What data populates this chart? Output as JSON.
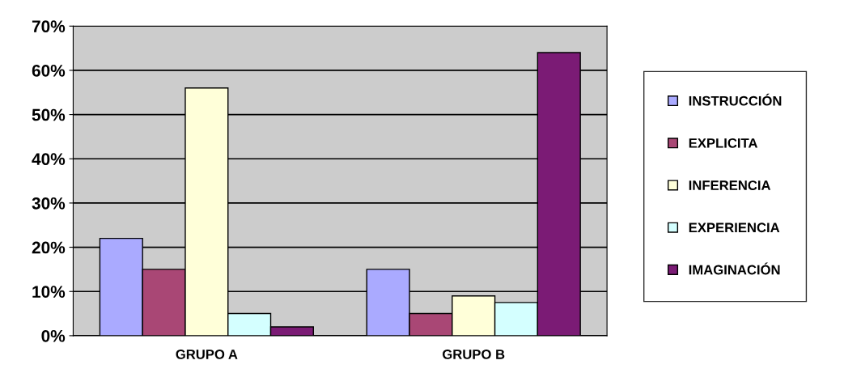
{
  "chart_data": {
    "type": "bar",
    "categories": [
      "GRUPO A",
      "GRUPO B"
    ],
    "series": [
      {
        "name": "INSTRUCCIÓN",
        "color": "#aaaaff",
        "values": [
          22,
          15
        ]
      },
      {
        "name": "EXPLICITA",
        "color": "#a94775",
        "values": [
          15,
          5
        ]
      },
      {
        "name": "INFERENCIA",
        "color": "#ffffd9",
        "values": [
          56,
          9
        ]
      },
      {
        "name": "EXPERIENCIA",
        "color": "#d4ffff",
        "values": [
          5,
          7.5
        ]
      },
      {
        "name": "IMAGINACIÓN",
        "color": "#7b1b75",
        "values": [
          2,
          64
        ]
      }
    ],
    "ylim": [
      0,
      70
    ],
    "yticks": [
      {
        "value": 0,
        "label": "0%"
      },
      {
        "value": 10,
        "label": "10%"
      },
      {
        "value": 20,
        "label": "20%"
      },
      {
        "value": 30,
        "label": "30%"
      },
      {
        "value": 40,
        "label": "40%"
      },
      {
        "value": 50,
        "label": "50%"
      },
      {
        "value": 60,
        "label": "60%"
      },
      {
        "value": 70,
        "label": "70%"
      }
    ],
    "grid": "y",
    "legend": "right"
  }
}
